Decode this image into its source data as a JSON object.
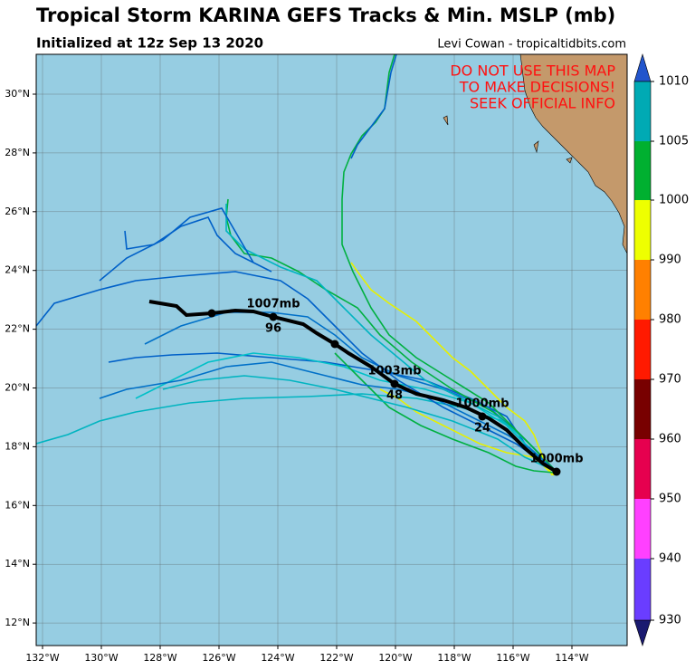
{
  "header": {
    "title": "Tropical Storm KARINA GEFS Tracks & Min. MSLP (mb)",
    "subtitle": "Initialized at 12z Sep 13 2020",
    "credit": "Levi Cowan - tropicaltidbits.com"
  },
  "warning": [
    "DO NOT USE THIS MAP",
    "TO MAKE DECISIONS!",
    "SEEK OFFICIAL INFO"
  ],
  "map": {
    "lat_labels": [
      "30°N",
      "28°N",
      "26°N",
      "24°N",
      "22°N",
      "20°N",
      "18°N",
      "16°N",
      "14°N",
      "12°N"
    ],
    "lon_labels": [
      "132°W",
      "130°W",
      "128°W",
      "126°W",
      "124°W",
      "122°W",
      "120°W",
      "118°W",
      "116°W",
      "114°W"
    ],
    "annotations": [
      "1007mb",
      "96",
      "1003mb",
      "48",
      "1000mb",
      "24",
      "1000mb"
    ]
  },
  "colorbar": {
    "labels": [
      "1010",
      "1005",
      "1000",
      "990",
      "980",
      "970",
      "960",
      "950",
      "940",
      "930"
    ]
  }
}
